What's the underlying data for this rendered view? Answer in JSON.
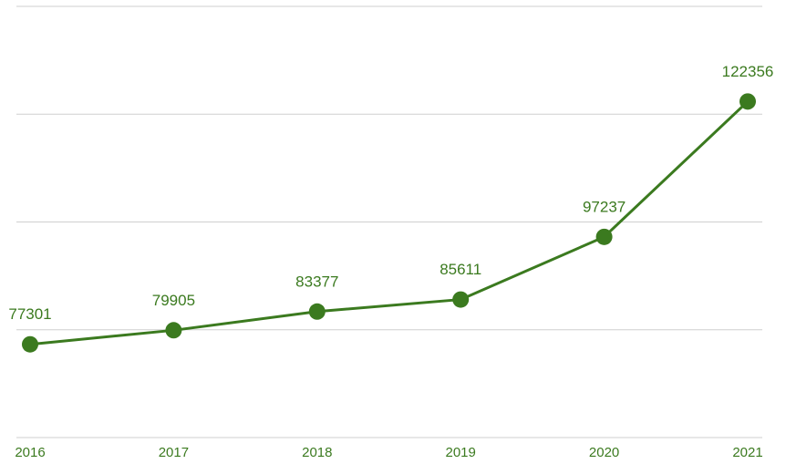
{
  "chart_data": {
    "type": "line",
    "categories": [
      "2016",
      "2017",
      "2018",
      "2019",
      "2020",
      "2021"
    ],
    "series": [
      {
        "name": "Value",
        "color": "#3b7a1f",
        "values": [
          77301,
          79905,
          83377,
          85611,
          97237,
          122356
        ]
      }
    ],
    "ylim": [
      60000,
      140000
    ],
    "yticks": [
      60000,
      80000,
      100000,
      120000,
      140000
    ],
    "grid": true
  }
}
